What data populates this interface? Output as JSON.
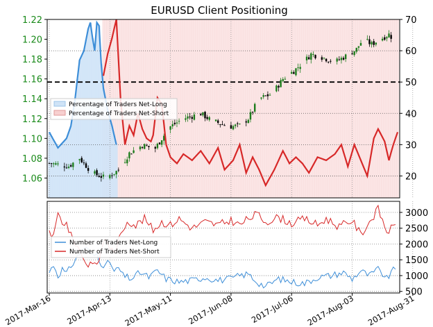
{
  "chart_data": [
    {
      "type": "candlestick+line",
      "title": "EURUSD Client Positioning",
      "price_axis": {
        "ticks": [
          "1.06",
          "1.08",
          "1.10",
          "1.12",
          "1.14",
          "1.16",
          "1.18",
          "1.20",
          "1.22"
        ],
        "ylim": [
          1.04,
          1.22
        ]
      },
      "percent_axis": {
        "ticks": [
          "20",
          "30",
          "40",
          "50",
          "60",
          "70"
        ],
        "ylim": [
          13,
          70
        ],
        "reference_line": 50
      },
      "x_ticks": [
        "2017-Mar-16",
        "2017-Apr-13",
        "2017-May-11",
        "2017-Jun-08",
        "2017-Jul-06",
        "2017-Aug-03",
        "2017-Aug-31"
      ],
      "price_keypoints": [
        {
          "day": 0,
          "close": 1.075
        },
        {
          "day": 9,
          "close": 1.072
        },
        {
          "day": 14,
          "close": 1.08
        },
        {
          "day": 20,
          "close": 1.065
        },
        {
          "day": 26,
          "close": 1.06
        },
        {
          "day": 32,
          "close": 1.068
        },
        {
          "day": 37,
          "close": 1.085
        },
        {
          "day": 43,
          "close": 1.093
        },
        {
          "day": 49,
          "close": 1.09
        },
        {
          "day": 52,
          "close": 1.1
        },
        {
          "day": 56,
          "close": 1.112
        },
        {
          "day": 62,
          "close": 1.12
        },
        {
          "day": 70,
          "close": 1.125
        },
        {
          "day": 75,
          "close": 1.118
        },
        {
          "day": 79,
          "close": 1.115
        },
        {
          "day": 84,
          "close": 1.112
        },
        {
          "day": 88,
          "close": 1.113
        },
        {
          "day": 92,
          "close": 1.12
        },
        {
          "day": 97,
          "close": 1.14
        },
        {
          "day": 103,
          "close": 1.145
        },
        {
          "day": 108,
          "close": 1.16
        },
        {
          "day": 113,
          "close": 1.168
        },
        {
          "day": 118,
          "close": 1.178
        },
        {
          "day": 121,
          "close": 1.185
        },
        {
          "day": 126,
          "close": 1.182
        },
        {
          "day": 132,
          "close": 1.177
        },
        {
          "day": 137,
          "close": 1.183
        },
        {
          "day": 142,
          "close": 1.19
        },
        {
          "day": 145,
          "close": 1.2
        },
        {
          "day": 149,
          "close": 1.195
        },
        {
          "day": 153,
          "close": 1.2
        },
        {
          "day": 157,
          "close": 1.205
        },
        {
          "day": 160,
          "close": 1.198
        }
      ],
      "legend_top": [
        "Percentage of Traders Net-Long",
        "Percentage of Traders Net-Short"
      ],
      "net_long_pct_keypoints": [
        {
          "day": 0,
          "value": 34
        },
        {
          "day": 4,
          "value": 29
        },
        {
          "day": 8,
          "value": 32
        },
        {
          "day": 10,
          "value": 36
        },
        {
          "day": 12,
          "value": 45
        },
        {
          "day": 14,
          "value": 57
        },
        {
          "day": 16,
          "value": 60
        },
        {
          "day": 18,
          "value": 67
        },
        {
          "day": 19,
          "value": 69
        },
        {
          "day": 20,
          "value": 64
        },
        {
          "day": 21,
          "value": 60
        },
        {
          "day": 22,
          "value": 69
        },
        {
          "day": 23,
          "value": 68
        },
        {
          "day": 24,
          "value": 56
        },
        {
          "day": 25,
          "value": 48
        },
        {
          "day": 27,
          "value": 41
        },
        {
          "day": 29,
          "value": 36
        },
        {
          "day": 31,
          "value": 30
        }
      ],
      "net_short_pct_keypoints": [
        {
          "day": 25,
          "value": 52
        },
        {
          "day": 27,
          "value": 59
        },
        {
          "day": 29,
          "value": 64
        },
        {
          "day": 31,
          "value": 70
        },
        {
          "day": 33,
          "value": 44
        },
        {
          "day": 35,
          "value": 30
        },
        {
          "day": 37,
          "value": 36
        },
        {
          "day": 39,
          "value": 33
        },
        {
          "day": 41,
          "value": 40
        },
        {
          "day": 43,
          "value": 35
        },
        {
          "day": 45,
          "value": 32
        },
        {
          "day": 47,
          "value": 31
        },
        {
          "day": 48,
          "value": 33
        },
        {
          "day": 50,
          "value": 45
        },
        {
          "day": 52,
          "value": 43
        },
        {
          "day": 54,
          "value": 30
        },
        {
          "day": 56,
          "value": 26
        },
        {
          "day": 59,
          "value": 24
        },
        {
          "day": 62,
          "value": 27
        },
        {
          "day": 66,
          "value": 25
        },
        {
          "day": 70,
          "value": 28
        },
        {
          "day": 74,
          "value": 24
        },
        {
          "day": 78,
          "value": 29
        },
        {
          "day": 81,
          "value": 22
        },
        {
          "day": 85,
          "value": 25
        },
        {
          "day": 88,
          "value": 30
        },
        {
          "day": 91,
          "value": 21
        },
        {
          "day": 94,
          "value": 26
        },
        {
          "day": 97,
          "value": 22
        },
        {
          "day": 100,
          "value": 17
        },
        {
          "day": 104,
          "value": 22
        },
        {
          "day": 108,
          "value": 28
        },
        {
          "day": 111,
          "value": 24
        },
        {
          "day": 114,
          "value": 26
        },
        {
          "day": 117,
          "value": 24
        },
        {
          "day": 120,
          "value": 21
        },
        {
          "day": 124,
          "value": 26
        },
        {
          "day": 128,
          "value": 25
        },
        {
          "day": 132,
          "value": 27
        },
        {
          "day": 135,
          "value": 30
        },
        {
          "day": 138,
          "value": 23
        },
        {
          "day": 141,
          "value": 30
        },
        {
          "day": 144,
          "value": 25
        },
        {
          "day": 147,
          "value": 20
        },
        {
          "day": 150,
          "value": 32
        },
        {
          "day": 152,
          "value": 35
        },
        {
          "day": 155,
          "value": 31
        },
        {
          "day": 157,
          "value": 25
        },
        {
          "day": 159,
          "value": 30
        },
        {
          "day": 161,
          "value": 34
        }
      ]
    },
    {
      "type": "line",
      "right_axis": {
        "ticks": [
          "500",
          "1000",
          "1500",
          "2000",
          "2500",
          "3000"
        ],
        "ylim": [
          450,
          3350
        ]
      },
      "x_ticks": [
        "2017-Mar-16",
        "2017-Apr-13",
        "2017-May-11",
        "2017-Jun-08",
        "2017-Jul-06",
        "2017-Aug-03",
        "2017-Aug-31"
      ],
      "legend_bottom": [
        "Number of Traders Net-Long",
        "Number of Traders Net-Short"
      ],
      "net_long_count_keypoints": [
        {
          "day": 0,
          "value": 1100
        },
        {
          "day": 2,
          "value": 1350
        },
        {
          "day": 4,
          "value": 1000
        },
        {
          "day": 6,
          "value": 1200
        },
        {
          "day": 8,
          "value": 1050
        },
        {
          "day": 10,
          "value": 1300
        },
        {
          "day": 13,
          "value": 1600
        },
        {
          "day": 16,
          "value": 1900
        },
        {
          "day": 18,
          "value": 1800
        },
        {
          "day": 20,
          "value": 1600
        },
        {
          "day": 22,
          "value": 1700
        },
        {
          "day": 24,
          "value": 1400
        },
        {
          "day": 26,
          "value": 1300
        },
        {
          "day": 28,
          "value": 1450
        },
        {
          "day": 30,
          "value": 1100
        },
        {
          "day": 32,
          "value": 1250
        },
        {
          "day": 34,
          "value": 1000
        },
        {
          "day": 38,
          "value": 900
        },
        {
          "day": 42,
          "value": 1100
        },
        {
          "day": 46,
          "value": 950
        },
        {
          "day": 50,
          "value": 1150
        },
        {
          "day": 54,
          "value": 900
        },
        {
          "day": 60,
          "value": 800
        },
        {
          "day": 66,
          "value": 850
        },
        {
          "day": 72,
          "value": 950
        },
        {
          "day": 78,
          "value": 850
        },
        {
          "day": 84,
          "value": 900
        },
        {
          "day": 88,
          "value": 1000
        },
        {
          "day": 92,
          "value": 1050
        },
        {
          "day": 96,
          "value": 800
        },
        {
          "day": 100,
          "value": 650
        },
        {
          "day": 106,
          "value": 900
        },
        {
          "day": 112,
          "value": 800
        },
        {
          "day": 118,
          "value": 750
        },
        {
          "day": 124,
          "value": 950
        },
        {
          "day": 130,
          "value": 1000
        },
        {
          "day": 136,
          "value": 1100
        },
        {
          "day": 140,
          "value": 900
        },
        {
          "day": 144,
          "value": 1150
        },
        {
          "day": 148,
          "value": 1000
        },
        {
          "day": 152,
          "value": 1200
        },
        {
          "day": 156,
          "value": 900
        },
        {
          "day": 160,
          "value": 1250
        }
      ],
      "net_short_count_keypoints": [
        {
          "day": 0,
          "value": 2450
        },
        {
          "day": 2,
          "value": 2200
        },
        {
          "day": 4,
          "value": 2950
        },
        {
          "day": 6,
          "value": 2700
        },
        {
          "day": 8,
          "value": 2650
        },
        {
          "day": 10,
          "value": 2250
        },
        {
          "day": 12,
          "value": 2050
        },
        {
          "day": 14,
          "value": 1800
        },
        {
          "day": 16,
          "value": 1550
        },
        {
          "day": 18,
          "value": 1300
        },
        {
          "day": 20,
          "value": 1500
        },
        {
          "day": 22,
          "value": 1250
        },
        {
          "day": 24,
          "value": 1800
        },
        {
          "day": 26,
          "value": 2200
        },
        {
          "day": 28,
          "value": 1900
        },
        {
          "day": 30,
          "value": 1700
        },
        {
          "day": 32,
          "value": 2100
        },
        {
          "day": 34,
          "value": 2400
        },
        {
          "day": 36,
          "value": 2750
        },
        {
          "day": 40,
          "value": 2600
        },
        {
          "day": 44,
          "value": 2800
        },
        {
          "day": 48,
          "value": 2450
        },
        {
          "day": 52,
          "value": 2700
        },
        {
          "day": 56,
          "value": 2600
        },
        {
          "day": 60,
          "value": 2800
        },
        {
          "day": 66,
          "value": 2500
        },
        {
          "day": 72,
          "value": 2700
        },
        {
          "day": 78,
          "value": 2600
        },
        {
          "day": 84,
          "value": 2750
        },
        {
          "day": 88,
          "value": 2600
        },
        {
          "day": 92,
          "value": 2800
        },
        {
          "day": 96,
          "value": 2950
        },
        {
          "day": 100,
          "value": 2700
        },
        {
          "day": 106,
          "value": 2850
        },
        {
          "day": 112,
          "value": 2650
        },
        {
          "day": 118,
          "value": 2800
        },
        {
          "day": 124,
          "value": 2600
        },
        {
          "day": 128,
          "value": 2800
        },
        {
          "day": 134,
          "value": 2550
        },
        {
          "day": 140,
          "value": 2750
        },
        {
          "day": 144,
          "value": 2300
        },
        {
          "day": 148,
          "value": 2700
        },
        {
          "day": 152,
          "value": 3100
        },
        {
          "day": 156,
          "value": 2400
        },
        {
          "day": 160,
          "value": 2550
        }
      ]
    }
  ],
  "colors": {
    "bull_candle": "#1d7d1d",
    "bear_candle": "#000000",
    "net_long": "#3d8ed8",
    "net_short": "#d72828",
    "net_long_fill": "#cfe3f7",
    "net_short_fill": "#f7d0d0",
    "left_tick_text": "#1a8a1a"
  }
}
